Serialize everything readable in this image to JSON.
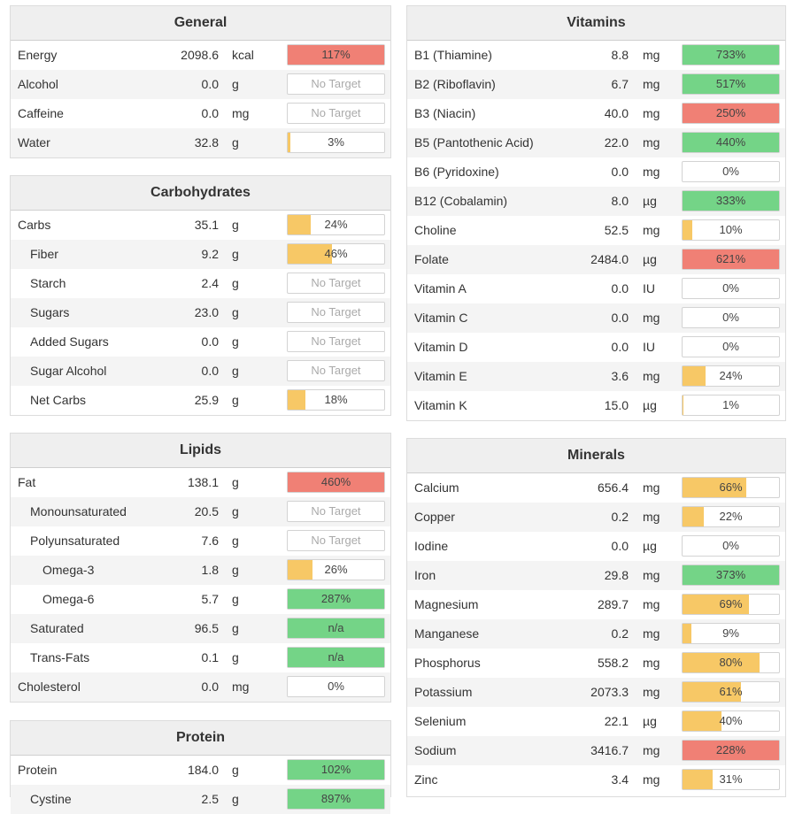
{
  "colors": {
    "red": "#f08075",
    "green": "#74d487",
    "yellow": "#f7c866"
  },
  "sections": [
    {
      "id": "general",
      "title": "General",
      "column": "left",
      "rows": [
        {
          "name": "Energy",
          "amount": "2098.6",
          "unit": "kcal",
          "pct": "117%",
          "fill": 1.0,
          "color": "red",
          "indent": 0
        },
        {
          "name": "Alcohol",
          "amount": "0.0",
          "unit": "g",
          "pct": "No Target",
          "fill": 0,
          "color": "none",
          "indent": 0
        },
        {
          "name": "Caffeine",
          "amount": "0.0",
          "unit": "mg",
          "pct": "No Target",
          "fill": 0,
          "color": "none",
          "indent": 0
        },
        {
          "name": "Water",
          "amount": "32.8",
          "unit": "g",
          "pct": "3%",
          "fill": 0.03,
          "color": "yellow",
          "indent": 0
        }
      ]
    },
    {
      "id": "carbohydrates",
      "title": "Carbohydrates",
      "column": "left",
      "rows": [
        {
          "name": "Carbs",
          "amount": "35.1",
          "unit": "g",
          "pct": "24%",
          "fill": 0.24,
          "color": "yellow",
          "indent": 0
        },
        {
          "name": "Fiber",
          "amount": "9.2",
          "unit": "g",
          "pct": "46%",
          "fill": 0.46,
          "color": "yellow",
          "indent": 1
        },
        {
          "name": "Starch",
          "amount": "2.4",
          "unit": "g",
          "pct": "No Target",
          "fill": 0,
          "color": "none",
          "indent": 1
        },
        {
          "name": "Sugars",
          "amount": "23.0",
          "unit": "g",
          "pct": "No Target",
          "fill": 0,
          "color": "none",
          "indent": 1
        },
        {
          "name": "Added Sugars",
          "amount": "0.0",
          "unit": "g",
          "pct": "No Target",
          "fill": 0,
          "color": "none",
          "indent": 1
        },
        {
          "name": "Sugar Alcohol",
          "amount": "0.0",
          "unit": "g",
          "pct": "No Target",
          "fill": 0,
          "color": "none",
          "indent": 1
        },
        {
          "name": "Net Carbs",
          "amount": "25.9",
          "unit": "g",
          "pct": "18%",
          "fill": 0.18,
          "color": "yellow",
          "indent": 1
        }
      ]
    },
    {
      "id": "lipids",
      "title": "Lipids",
      "column": "left",
      "rows": [
        {
          "name": "Fat",
          "amount": "138.1",
          "unit": "g",
          "pct": "460%",
          "fill": 1.0,
          "color": "red",
          "indent": 0
        },
        {
          "name": "Monounsaturated",
          "amount": "20.5",
          "unit": "g",
          "pct": "No Target",
          "fill": 0,
          "color": "none",
          "indent": 1
        },
        {
          "name": "Polyunsaturated",
          "amount": "7.6",
          "unit": "g",
          "pct": "No Target",
          "fill": 0,
          "color": "none",
          "indent": 1
        },
        {
          "name": "Omega-3",
          "amount": "1.8",
          "unit": "g",
          "pct": "26%",
          "fill": 0.26,
          "color": "yellow",
          "indent": 2
        },
        {
          "name": "Omega-6",
          "amount": "5.7",
          "unit": "g",
          "pct": "287%",
          "fill": 1.0,
          "color": "green",
          "indent": 2
        },
        {
          "name": "Saturated",
          "amount": "96.5",
          "unit": "g",
          "pct": "n/a",
          "fill": 1.0,
          "color": "green",
          "indent": 1
        },
        {
          "name": "Trans-Fats",
          "amount": "0.1",
          "unit": "g",
          "pct": "n/a",
          "fill": 1.0,
          "color": "green",
          "indent": 1
        },
        {
          "name": "Cholesterol",
          "amount": "0.0",
          "unit": "mg",
          "pct": "0%",
          "fill": 0,
          "color": "none",
          "indent": 0
        }
      ]
    },
    {
      "id": "protein",
      "title": "Protein",
      "column": "left",
      "rows": [
        {
          "name": "Protein",
          "amount": "184.0",
          "unit": "g",
          "pct": "102%",
          "fill": 1.0,
          "color": "green",
          "indent": 0
        },
        {
          "name": "Cystine",
          "amount": "2.5",
          "unit": "g",
          "pct": "897%",
          "fill": 1.0,
          "color": "green",
          "indent": 1
        }
      ]
    },
    {
      "id": "vitamins",
      "title": "Vitamins",
      "column": "right",
      "rows": [
        {
          "name": "B1 (Thiamine)",
          "amount": "8.8",
          "unit": "mg",
          "pct": "733%",
          "fill": 1.0,
          "color": "green",
          "indent": 0
        },
        {
          "name": "B2 (Riboflavin)",
          "amount": "6.7",
          "unit": "mg",
          "pct": "517%",
          "fill": 1.0,
          "color": "green",
          "indent": 0
        },
        {
          "name": "B3 (Niacin)",
          "amount": "40.0",
          "unit": "mg",
          "pct": "250%",
          "fill": 1.0,
          "color": "red",
          "indent": 0
        },
        {
          "name": "B5 (Pantothenic Acid)",
          "amount": "22.0",
          "unit": "mg",
          "pct": "440%",
          "fill": 1.0,
          "color": "green",
          "indent": 0
        },
        {
          "name": "B6 (Pyridoxine)",
          "amount": "0.0",
          "unit": "mg",
          "pct": "0%",
          "fill": 0,
          "color": "none",
          "indent": 0
        },
        {
          "name": "B12 (Cobalamin)",
          "amount": "8.0",
          "unit": "µg",
          "pct": "333%",
          "fill": 1.0,
          "color": "green",
          "indent": 0
        },
        {
          "name": "Choline",
          "amount": "52.5",
          "unit": "mg",
          "pct": "10%",
          "fill": 0.1,
          "color": "yellow",
          "indent": 0
        },
        {
          "name": "Folate",
          "amount": "2484.0",
          "unit": "µg",
          "pct": "621%",
          "fill": 1.0,
          "color": "red",
          "indent": 0
        },
        {
          "name": "Vitamin A",
          "amount": "0.0",
          "unit": "IU",
          "pct": "0%",
          "fill": 0,
          "color": "none",
          "indent": 0
        },
        {
          "name": "Vitamin C",
          "amount": "0.0",
          "unit": "mg",
          "pct": "0%",
          "fill": 0,
          "color": "none",
          "indent": 0
        },
        {
          "name": "Vitamin D",
          "amount": "0.0",
          "unit": "IU",
          "pct": "0%",
          "fill": 0,
          "color": "none",
          "indent": 0
        },
        {
          "name": "Vitamin E",
          "amount": "3.6",
          "unit": "mg",
          "pct": "24%",
          "fill": 0.24,
          "color": "yellow",
          "indent": 0
        },
        {
          "name": "Vitamin K",
          "amount": "15.0",
          "unit": "µg",
          "pct": "1%",
          "fill": 0.01,
          "color": "yellow",
          "indent": 0
        }
      ]
    },
    {
      "id": "minerals",
      "title": "Minerals",
      "column": "right",
      "rows": [
        {
          "name": "Calcium",
          "amount": "656.4",
          "unit": "mg",
          "pct": "66%",
          "fill": 0.66,
          "color": "yellow",
          "indent": 0
        },
        {
          "name": "Copper",
          "amount": "0.2",
          "unit": "mg",
          "pct": "22%",
          "fill": 0.22,
          "color": "yellow",
          "indent": 0
        },
        {
          "name": "Iodine",
          "amount": "0.0",
          "unit": "µg",
          "pct": "0%",
          "fill": 0,
          "color": "none",
          "indent": 0
        },
        {
          "name": "Iron",
          "amount": "29.8",
          "unit": "mg",
          "pct": "373%",
          "fill": 1.0,
          "color": "green",
          "indent": 0
        },
        {
          "name": "Magnesium",
          "amount": "289.7",
          "unit": "mg",
          "pct": "69%",
          "fill": 0.69,
          "color": "yellow",
          "indent": 0
        },
        {
          "name": "Manganese",
          "amount": "0.2",
          "unit": "mg",
          "pct": "9%",
          "fill": 0.09,
          "color": "yellow",
          "indent": 0
        },
        {
          "name": "Phosphorus",
          "amount": "558.2",
          "unit": "mg",
          "pct": "80%",
          "fill": 0.8,
          "color": "yellow",
          "indent": 0
        },
        {
          "name": "Potassium",
          "amount": "2073.3",
          "unit": "mg",
          "pct": "61%",
          "fill": 0.61,
          "color": "yellow",
          "indent": 0
        },
        {
          "name": "Selenium",
          "amount": "22.1",
          "unit": "µg",
          "pct": "40%",
          "fill": 0.4,
          "color": "yellow",
          "indent": 0
        },
        {
          "name": "Sodium",
          "amount": "3416.7",
          "unit": "mg",
          "pct": "228%",
          "fill": 1.0,
          "color": "red",
          "indent": 0
        },
        {
          "name": "Zinc",
          "amount": "3.4",
          "unit": "mg",
          "pct": "31%",
          "fill": 0.31,
          "color": "yellow",
          "indent": 0
        }
      ]
    }
  ]
}
